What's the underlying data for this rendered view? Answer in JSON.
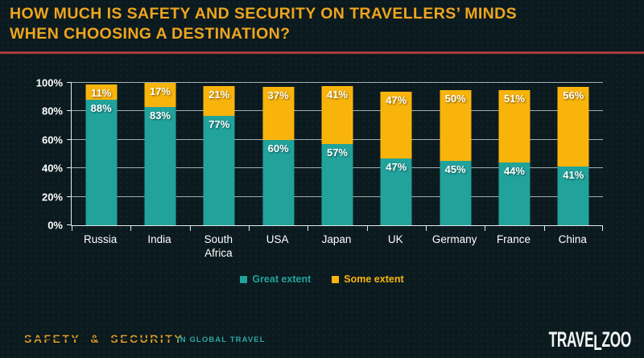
{
  "page": {
    "title_line1": "HOW MUCH IS SAFETY AND SECURITY ON TRAVELLERS’ MINDS",
    "title_line2": "WHEN CHOOSING A DESTINATION?"
  },
  "colors": {
    "background": "#0b1a1f",
    "title": "#efa51e",
    "divider": "#a93b3b",
    "axis": "#e3eaec",
    "grid": "#c9d4d6",
    "label": "#ffffff",
    "brand_gold": "#d99d28",
    "tagline_teal": "#2fa8a2",
    "logo_white": "#f2f5f5"
  },
  "chart_data": {
    "type": "bar",
    "stacked": true,
    "categories": [
      "Russia",
      "India",
      "South Africa",
      "USA",
      "Japan",
      "UK",
      "Germany",
      "France",
      "China"
    ],
    "series": [
      {
        "name": "Great extent",
        "color": "#21a29b",
        "values": [
          88,
          83,
          77,
          60,
          57,
          47,
          45,
          44,
          41
        ]
      },
      {
        "name": "Some extent",
        "color": "#f9b40c",
        "values": [
          11,
          17,
          21,
          37,
          41,
          47,
          50,
          51,
          56
        ]
      }
    ],
    "y_ticks": [
      0,
      20,
      40,
      60,
      80,
      100
    ],
    "y_tick_suffix": "%",
    "value_label_suffix": "%",
    "ylim": [
      0,
      100
    ],
    "grid": true,
    "legend_position": "bottom-center"
  },
  "footer": {
    "brand": "SAFETY & SECURITY",
    "tagline": "IN GLOBAL TRAVEL",
    "logo_pre": "TRAVE",
    "logo_drop": "L",
    "logo_post": "ZOO"
  }
}
